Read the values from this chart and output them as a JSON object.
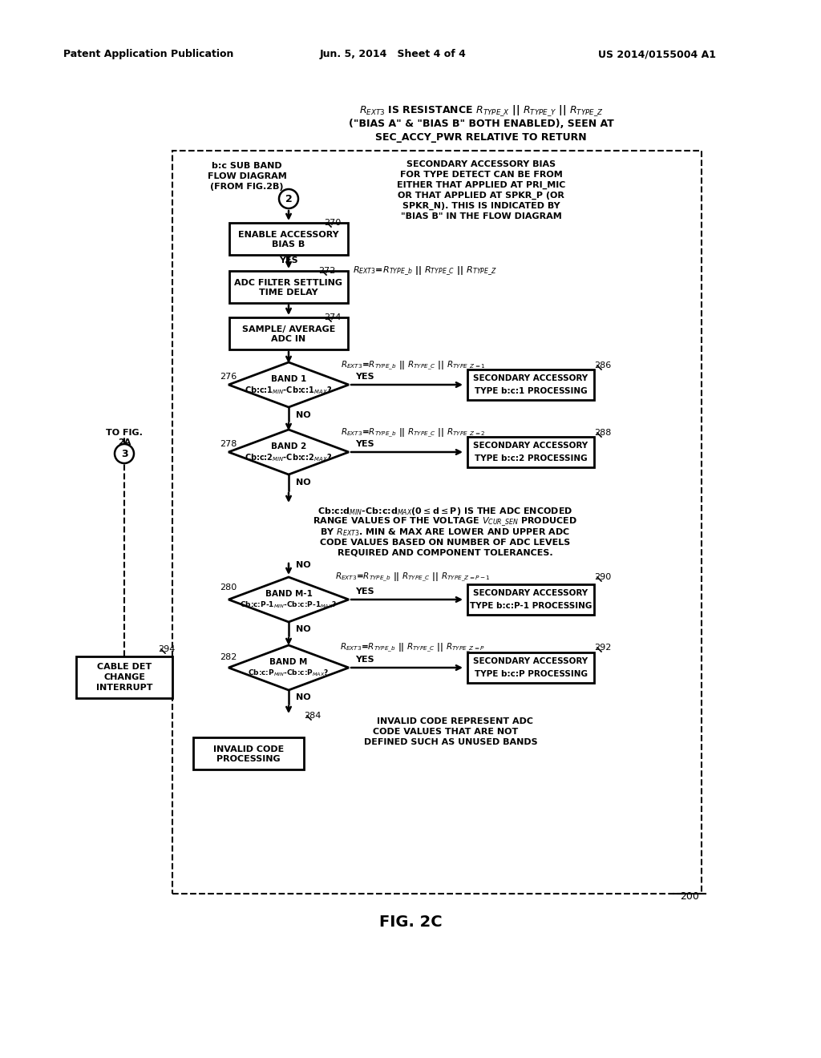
{
  "bg_color": "#ffffff",
  "header_left": "Patent Application Publication",
  "header_mid": "Jun. 5, 2014   Sheet 4 of 4",
  "header_right": "US 2014/0155004 A1"
}
